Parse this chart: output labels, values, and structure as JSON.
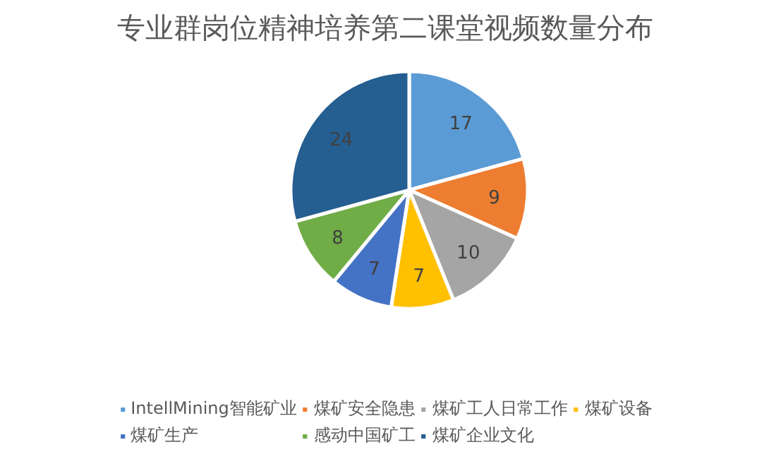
{
  "chart_data": {
    "type": "pie",
    "title": "专业群岗位精神培养第二课堂视频数量分布",
    "categories": [
      "IntellMining智能矿业",
      "煤矿安全隐患",
      "煤矿工人日常工作",
      "煤矿设备",
      "煤矿生产",
      "感动中国矿工",
      "煤矿企业文化"
    ],
    "values": [
      17,
      9,
      10,
      7,
      7,
      8,
      24
    ],
    "colors": [
      "#5b9bd5",
      "#ed7d31",
      "#a5a5a5",
      "#ffc000",
      "#4472c4",
      "#70ad47",
      "#255e91"
    ],
    "data_labels": true,
    "legend": "bottom"
  }
}
